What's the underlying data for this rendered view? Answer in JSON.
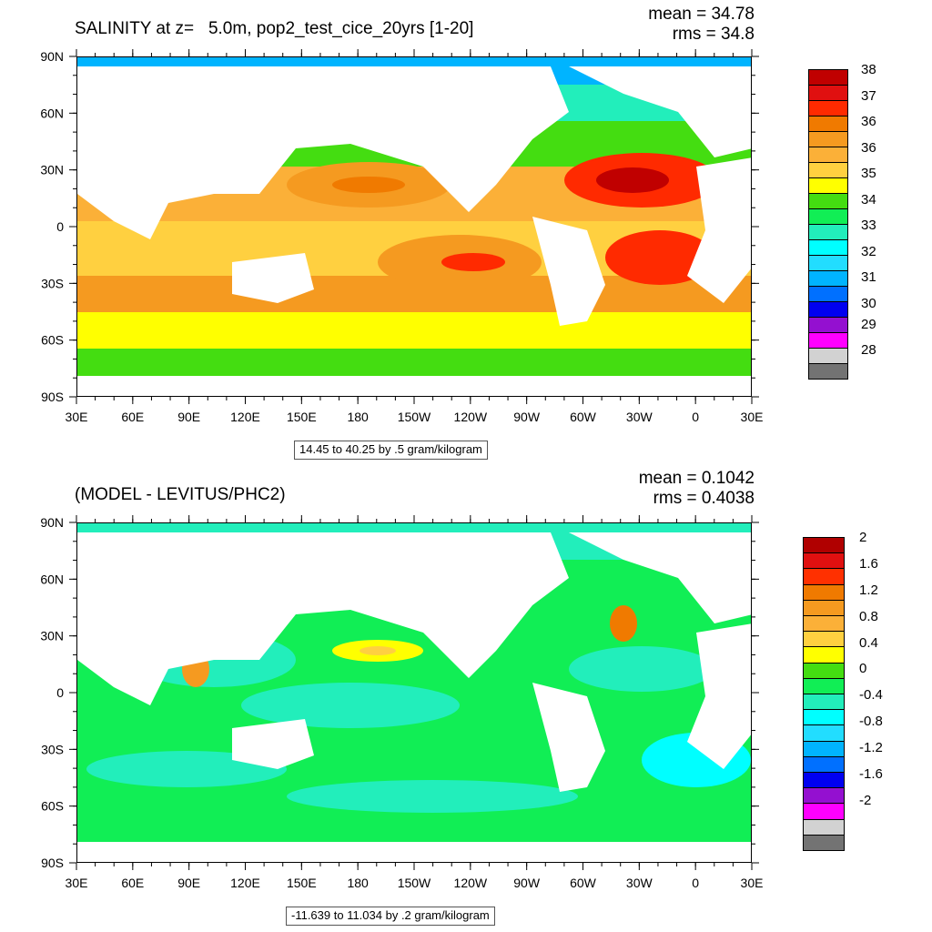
{
  "chart_data": [
    {
      "type": "contour-map",
      "title": "SALINITY at z=   5.0m, pop2_test_cice_20yrs [1-20]",
      "stats": {
        "mean_label": "mean = 34.78",
        "rms_label": "rms = 34.8",
        "mean": 34.78,
        "rms": 34.8
      },
      "x_ticks": [
        "30E",
        "60E",
        "90E",
        "120E",
        "150E",
        "180",
        "150W",
        "120W",
        "90W",
        "60W",
        "30W",
        "0",
        "30E"
      ],
      "y_ticks": [
        "90N",
        "60N",
        "30N",
        "0",
        "30S",
        "60S",
        "90S"
      ],
      "caption": "14.45 to 40.25 by .5 gram/kilogram",
      "colorbar": {
        "colors": [
          "#c00000",
          "#e01010",
          "#ff2a00",
          "#f07a00",
          "#f59a20",
          "#fbb038",
          "#ffd040",
          "#ffff00",
          "#44dd11",
          "#11ee55",
          "#22eebb",
          "#00ffff",
          "#22ddff",
          "#00b4ff",
          "#0070ff",
          "#0000f0",
          "#9410d0",
          "#ff00ff",
          "#d2d2d2",
          "#737373"
        ],
        "labels": [
          "38",
          "37",
          "36",
          "36",
          "35",
          "34",
          "33",
          "32",
          "31",
          "30",
          "29",
          "28"
        ],
        "label_rows": [
          0,
          2,
          4,
          6,
          8,
          10,
          12,
          14,
          16,
          18,
          19.6,
          21.6
        ]
      }
    },
    {
      "type": "contour-map",
      "title": "(MODEL - LEVITUS/PHC2)",
      "stats": {
        "mean_label": "mean = 0.1042",
        "rms_label": "rms = 0.4038",
        "mean": 0.1042,
        "rms": 0.4038
      },
      "x_ticks": [
        "30E",
        "60E",
        "90E",
        "120E",
        "150E",
        "180",
        "150W",
        "120W",
        "90W",
        "60W",
        "30W",
        "0",
        "30E"
      ],
      "y_ticks": [
        "90N",
        "60N",
        "30N",
        "0",
        "30S",
        "60S",
        "90S"
      ],
      "caption": "-11.639 to 11.034 by .2 gram/kilogram",
      "colorbar": {
        "colors": [
          "#b00000",
          "#e01010",
          "#ff3000",
          "#f07a00",
          "#f59a20",
          "#fbb038",
          "#ffd040",
          "#ffff00",
          "#44dd11",
          "#11ee55",
          "#22eebb",
          "#00ffff",
          "#22ddff",
          "#00b4ff",
          "#0070ff",
          "#0000f0",
          "#9410d0",
          "#ff00ff",
          "#d2d2d2",
          "#737373"
        ],
        "labels": [
          "2",
          "1.6",
          "1.2",
          "0.8",
          "0.4",
          "0",
          "-0.4",
          "-0.8",
          "-1.2",
          "-1.6",
          "-2"
        ],
        "label_rows": [
          0,
          2,
          4,
          6,
          8,
          10,
          12,
          14,
          16,
          18,
          20
        ]
      }
    }
  ]
}
